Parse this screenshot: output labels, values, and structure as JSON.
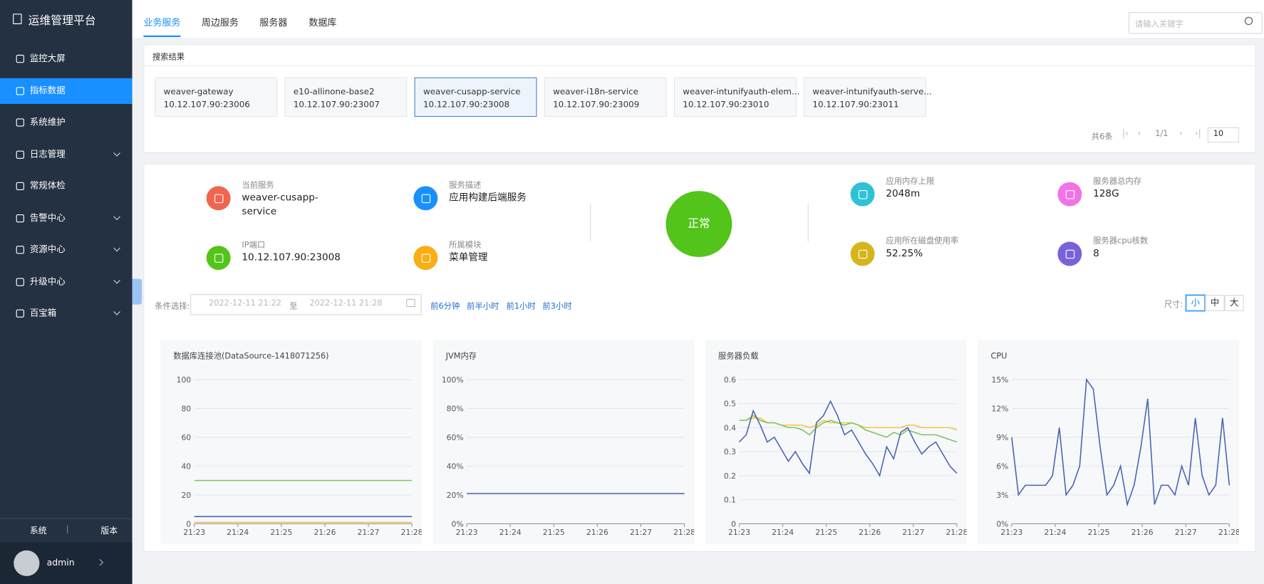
{
  "sidebar": {
    "title": "运维管理平台",
    "active": 1,
    "menu": [
      {
        "label": "监控大屏",
        "sub": false
      },
      {
        "label": "指标数据",
        "sub": false
      },
      {
        "label": "系统维护",
        "sub": false
      },
      {
        "label": "日志管理",
        "sub": true
      },
      {
        "label": "常规体检",
        "sub": false
      },
      {
        "label": "告警中心",
        "sub": true
      },
      {
        "label": "资源中心",
        "sub": true
      },
      {
        "label": "升级中心",
        "sub": true
      },
      {
        "label": "百宝箱",
        "sub": true
      }
    ],
    "footer": [
      "系统",
      "版本"
    ],
    "user": "admin"
  },
  "tabs": {
    "active": 0,
    "items": [
      "业务服务",
      "周边服务",
      "服务器",
      "数据库"
    ]
  },
  "search_placeholder": "请输入关键字",
  "results": {
    "title": "搜索结果",
    "selected": 2,
    "cards": [
      {
        "name": "weaver-gateway",
        "addr": "10.12.107.90:23006"
      },
      {
        "name": "e10-allinone-base2",
        "addr": "10.12.107.90:23007"
      },
      {
        "name": "weaver-cusapp-service",
        "addr": "10.12.107.90:23008"
      },
      {
        "name": "weaver-i18n-service",
        "addr": "10.12.107.90:23009"
      },
      {
        "name": "weaver-intunifyauth-elem...",
        "addr": "10.12.107.90:23010"
      },
      {
        "name": "weaver-intunifyauth-serve...",
        "addr": "10.12.107.90:23011"
      }
    ],
    "total": "共6条",
    "page": "1/1",
    "page_size": "10"
  },
  "service": {
    "status": "正常",
    "fields": [
      {
        "label": "当前服务",
        "value": "weaver-cusapp-service",
        "color": "#f0654f"
      },
      {
        "label": "服务描述",
        "value": "应用构建后端服务",
        "color": "#1890ff"
      },
      {
        "label": "IP端口",
        "value": "10.12.107.90:23008",
        "color": "#52c41a"
      },
      {
        "label": "所属模块",
        "value": "菜单管理",
        "color": "#faad14"
      },
      {
        "label": "应用内存上限",
        "value": "2048m",
        "color": "#2fc2d6"
      },
      {
        "label": "服务器总内存",
        "value": "128G",
        "color": "#f273e6"
      },
      {
        "label": "应用所在磁盘使用率",
        "value": "52.25%",
        "color": "#d4b51c"
      },
      {
        "label": "服务器cpu核数",
        "value": "8",
        "color": "#7b61d9"
      }
    ]
  },
  "filter": {
    "label": "条件选择:",
    "start": "2022-12-11 21:22",
    "sep": "至",
    "end": "2022-12-11 21:28",
    "quick": [
      "前6分钟",
      "前半小时",
      "前1小时",
      "前3小时"
    ],
    "size_label": "尺寸:",
    "sizes": [
      "小",
      "中",
      "大"
    ],
    "size_active": 0
  },
  "charts": [
    {
      "type": "line",
      "title": "数据库连接池(DataSource-1418071256)",
      "xticks": [
        "21:23",
        "21:24",
        "21:25",
        "21:26",
        "21:27",
        "21:28"
      ],
      "ylim": [
        0,
        100
      ],
      "yticks": [
        0,
        20,
        40,
        60,
        80,
        100
      ],
      "series": [
        {
          "color": "#7ec35a",
          "values": [
            30,
            30,
            30,
            30,
            30,
            30,
            30
          ]
        },
        {
          "color": "#4a64b5",
          "values": [
            5,
            5,
            5,
            5,
            5,
            5,
            5
          ]
        },
        {
          "color": "#f5c242",
          "values": [
            1,
            1,
            1,
            1,
            1,
            1,
            1
          ]
        }
      ]
    },
    {
      "type": "line",
      "title": "JVM内存",
      "xticks": [
        "21:23",
        "21:24",
        "21:25",
        "21:26",
        "21:27",
        "21:28"
      ],
      "ylim": [
        0,
        100
      ],
      "yticks": [
        {
          "value": 0,
          "label": "0%"
        },
        {
          "value": 20,
          "label": "20%"
        },
        {
          "value": 40,
          "label": "40%"
        },
        {
          "value": 60,
          "label": "60%"
        },
        {
          "value": 80,
          "label": "80%"
        },
        {
          "value": 100,
          "label": "100%"
        }
      ],
      "series": [
        {
          "color": "#4a64b5",
          "values": [
            21,
            21,
            21,
            21,
            21,
            21,
            21
          ]
        }
      ]
    },
    {
      "type": "line",
      "title": "服务器负载",
      "xticks": [
        "21:23",
        "21:24",
        "21:25",
        "21:26",
        "21:27",
        "21:28"
      ],
      "ylim": [
        0,
        0.6
      ],
      "yticks": [
        0,
        0.1,
        0.2,
        0.3,
        0.4,
        0.5,
        0.6
      ],
      "series": [
        {
          "color": "#f5c242",
          "values": [
            0.43,
            0.43,
            0.44,
            0.44,
            0.42,
            0.42,
            0.41,
            0.41,
            0.41,
            0.41,
            0.4,
            0.41,
            0.43,
            0.42,
            0.42,
            0.42,
            0.42,
            0.41,
            0.4,
            0.4,
            0.4,
            0.4,
            0.4,
            0.4,
            0.41,
            0.41,
            0.4,
            0.4,
            0.4,
            0.4,
            0.4,
            0.39
          ]
        },
        {
          "color": "#7ec35a",
          "values": [
            0.43,
            0.43,
            0.45,
            0.43,
            0.42,
            0.42,
            0.41,
            0.4,
            0.4,
            0.39,
            0.37,
            0.4,
            0.42,
            0.43,
            0.42,
            0.41,
            0.42,
            0.41,
            0.39,
            0.38,
            0.37,
            0.36,
            0.38,
            0.37,
            0.39,
            0.38,
            0.37,
            0.37,
            0.37,
            0.36,
            0.35,
            0.34
          ]
        },
        {
          "color": "#4a64b5",
          "values": [
            0.34,
            0.37,
            0.47,
            0.41,
            0.34,
            0.36,
            0.31,
            0.26,
            0.3,
            0.25,
            0.21,
            0.42,
            0.45,
            0.51,
            0.45,
            0.37,
            0.39,
            0.34,
            0.29,
            0.25,
            0.2,
            0.32,
            0.27,
            0.38,
            0.4,
            0.34,
            0.29,
            0.32,
            0.34,
            0.29,
            0.24,
            0.21
          ]
        }
      ]
    },
    {
      "type": "line",
      "title": "CPU",
      "xticks": [
        "21:23",
        "21:24",
        "21:25",
        "21:26",
        "21:27",
        "21:28"
      ],
      "ylim": [
        0,
        15
      ],
      "yticks": [
        {
          "value": 0,
          "label": "0%"
        },
        {
          "value": 3,
          "label": "3%"
        },
        {
          "value": 6,
          "label": "6%"
        },
        {
          "value": 9,
          "label": "9%"
        },
        {
          "value": 12,
          "label": "12%"
        },
        {
          "value": 15,
          "label": "15%"
        }
      ],
      "series": [
        {
          "color": "#4a64b5",
          "values": [
            9,
            3,
            4,
            4,
            4,
            4,
            5,
            10,
            3,
            4,
            6,
            15,
            14,
            8,
            3,
            4,
            6,
            2,
            4,
            8,
            13,
            2,
            4,
            4,
            3,
            6,
            4,
            11,
            5,
            3,
            4,
            11,
            4
          ]
        }
      ]
    }
  ]
}
